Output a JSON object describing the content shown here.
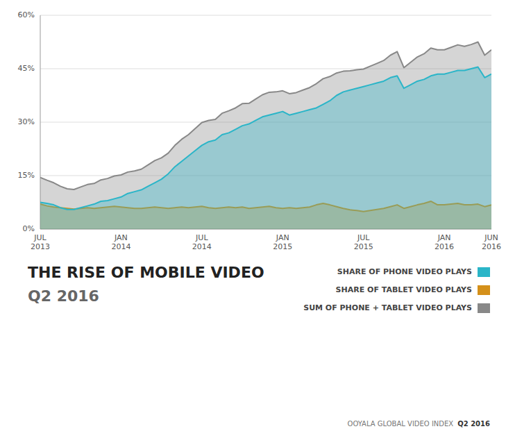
{
  "chart_data": {
    "type": "area",
    "title": "THE RISE OF MOBILE VIDEO",
    "subtitle": "Q2 2016",
    "annotations": [
      "OOYALA GLOBAL VIDEO INDEX",
      "Q2 2016"
    ],
    "categories": [
      "JUL\n2013",
      null,
      null,
      null,
      null,
      null,
      null,
      null,
      null,
      null,
      null,
      null,
      "JAN\n2014",
      null,
      null,
      null,
      null,
      null,
      null,
      null,
      null,
      null,
      null,
      null,
      "JUL\n2014",
      null,
      null,
      null,
      null,
      null,
      null,
      null,
      null,
      null,
      null,
      null,
      "JAN\n2015",
      null,
      null,
      null,
      null,
      null,
      null,
      null,
      null,
      null,
      null,
      null,
      "JUL\n2015",
      null,
      null,
      null,
      null,
      null,
      null,
      null,
      null,
      null,
      null,
      null,
      "JAN\n2016",
      null,
      null,
      null,
      null,
      null,
      null,
      "JUN\n2016"
    ],
    "series": [
      {
        "name": "SHARE OF PHONE VIDEO PLAYS",
        "color": "#2ab5c8",
        "values": [
          7.5,
          7.2,
          6.8,
          6.0,
          5.5,
          5.5,
          6.0,
          6.5,
          7.0,
          7.8,
          8.0,
          8.5,
          9.0,
          10.0,
          10.5,
          11.0,
          12.0,
          13.0,
          14.0,
          15.5,
          17.5,
          19.0,
          20.5,
          22.0,
          23.5,
          24.5,
          25.0,
          26.5,
          27.0,
          28.0,
          29.0,
          29.5,
          30.5,
          31.5,
          32.0,
          32.5,
          33.0,
          32.0,
          32.5,
          33.0,
          33.5,
          34.0,
          35.0,
          36.0,
          37.5,
          38.5,
          39.0,
          39.5,
          40.0,
          40.5,
          41.0,
          41.5,
          42.5,
          43.0,
          39.5,
          40.5,
          41.5,
          42.0,
          43.0,
          43.5,
          43.5,
          44.0,
          44.5,
          44.5,
          45.0,
          45.5,
          42.5,
          43.5
        ]
      },
      {
        "name": "SHARE OF TABLET VIDEO PLAYS",
        "color": "#d4901a",
        "values": [
          7.0,
          6.5,
          6.2,
          6.0,
          5.8,
          5.6,
          5.8,
          6.0,
          5.8,
          6.0,
          6.2,
          6.4,
          6.2,
          6.0,
          5.8,
          5.8,
          6.0,
          6.2,
          6.0,
          5.8,
          6.0,
          6.2,
          6.0,
          6.2,
          6.4,
          6.0,
          5.8,
          6.0,
          6.2,
          6.0,
          6.2,
          5.8,
          6.0,
          6.2,
          6.4,
          6.0,
          5.8,
          6.0,
          5.8,
          6.0,
          6.2,
          6.8,
          7.2,
          6.8,
          6.3,
          5.8,
          5.4,
          5.2,
          4.9,
          5.2,
          5.5,
          5.8,
          6.3,
          6.8,
          5.8,
          6.3,
          6.8,
          7.2,
          7.8,
          6.8,
          6.8,
          7.0,
          7.2,
          6.8,
          6.8,
          7.0,
          6.3,
          6.8
        ]
      },
      {
        "name": "SUM OF PHONE + TABLET VIDEO PLAYS",
        "color": "#888888",
        "values": [
          14.5,
          13.7,
          13.0,
          12.0,
          11.3,
          11.1,
          11.8,
          12.5,
          12.8,
          13.8,
          14.2,
          14.9,
          15.2,
          16.0,
          16.3,
          16.8,
          18.0,
          19.2,
          20.0,
          21.3,
          23.5,
          25.2,
          26.5,
          28.2,
          29.9,
          30.5,
          30.8,
          32.5,
          33.2,
          34.0,
          35.2,
          35.3,
          36.5,
          37.7,
          38.4,
          38.5,
          38.8,
          38.0,
          38.3,
          39.0,
          39.7,
          40.8,
          42.2,
          42.8,
          43.8,
          44.3,
          44.4,
          44.7,
          44.9,
          45.7,
          46.5,
          47.3,
          48.8,
          49.8,
          45.3,
          46.8,
          48.3,
          49.2,
          50.8,
          50.3,
          50.3,
          51.0,
          51.7,
          51.3,
          51.8,
          52.5,
          48.8,
          50.3
        ]
      }
    ],
    "ylim": [
      0,
      60
    ],
    "yticks": [
      {
        "value": 0,
        "label": "0%"
      },
      {
        "value": 15,
        "label": "15%"
      },
      {
        "value": 30,
        "label": "30%"
      },
      {
        "value": 45,
        "label": "45%"
      },
      {
        "value": 60,
        "label": "60%"
      }
    ],
    "grid": true,
    "legend": "bottom"
  }
}
